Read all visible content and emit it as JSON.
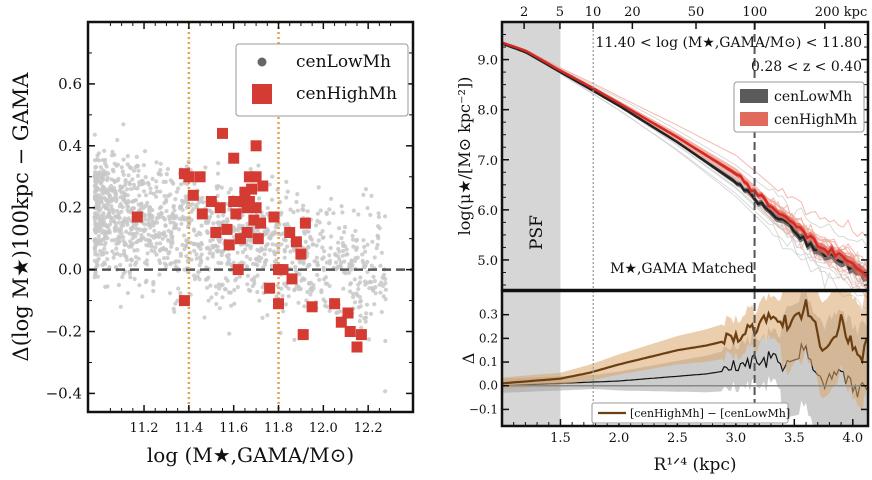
{
  "figure": {
    "left_panel": {
      "chart_data": {
        "type": "scatter",
        "xlabel": "log (M★,GAMA/M⊙)",
        "ylabel": "Δ(log M★)100kpc − GAMA",
        "xlim": [
          10.95,
          12.4
        ],
        "ylim": [
          -0.46,
          0.8
        ],
        "xticks": [
          11.2,
          11.4,
          11.6,
          11.8,
          12.0,
          12.2
        ],
        "xtick_labels": [
          "11.2",
          "11.4",
          "11.6",
          "11.8",
          "12.0",
          "12.2"
        ],
        "yticks": [
          -0.4,
          -0.2,
          0.0,
          0.2,
          0.4,
          0.6
        ],
        "ytick_labels": [
          "−0.4",
          "−0.2",
          "0.0",
          "0.2",
          "0.4",
          "0.6"
        ],
        "hline": 0.0,
        "vlines": [
          11.4,
          11.8
        ],
        "legend": {
          "location": "top-right",
          "entries": [
            "cenLowMh",
            "cenHighMh"
          ]
        },
        "series": [
          {
            "name": "cenLowMh",
            "marker": "circle",
            "color": "#c8c8c8",
            "n_points": 1400
          },
          {
            "name": "cenHighMh",
            "marker": "square",
            "color": "#d43b32",
            "points": [
              [
                11.17,
                0.17
              ],
              [
                11.38,
                0.31
              ],
              [
                11.4,
                0.3
              ],
              [
                11.42,
                0.24
              ],
              [
                11.38,
                -0.1
              ],
              [
                11.45,
                0.3
              ],
              [
                11.46,
                0.18
              ],
              [
                11.5,
                0.22
              ],
              [
                11.52,
                0.12
              ],
              [
                11.54,
                0.2
              ],
              [
                11.55,
                0.44
              ],
              [
                11.57,
                0.13
              ],
              [
                11.6,
                0.36
              ],
              [
                11.58,
                0.08
              ],
              [
                11.6,
                0.22
              ],
              [
                11.61,
                0.18
              ],
              [
                11.62,
                0.0
              ],
              [
                11.63,
                0.1
              ],
              [
                11.64,
                0.22
              ],
              [
                11.65,
                0.25
              ],
              [
                11.66,
                0.12
              ],
              [
                11.66,
                0.2
              ],
              [
                11.67,
                0.3
              ],
              [
                11.68,
                0.26
              ],
              [
                11.69,
                0.16
              ],
              [
                11.7,
                0.3
              ],
              [
                11.71,
                0.1
              ],
              [
                11.72,
                0.15
              ],
              [
                11.73,
                0.27
              ],
              [
                11.7,
                0.4
              ],
              [
                11.67,
                0.22
              ],
              [
                11.76,
                -0.06
              ],
              [
                11.78,
                0.17
              ],
              [
                11.8,
                0.0
              ],
              [
                11.8,
                -0.11
              ],
              [
                11.82,
                0.0
              ],
              [
                11.85,
                0.12
              ],
              [
                11.86,
                -0.03
              ],
              [
                11.88,
                0.09
              ],
              [
                11.9,
                0.05
              ],
              [
                11.91,
                -0.21
              ],
              [
                11.92,
                0.15
              ],
              [
                11.95,
                -0.12
              ],
              [
                12.05,
                -0.11
              ],
              [
                12.08,
                -0.17
              ],
              [
                12.11,
                -0.14
              ],
              [
                12.12,
                -0.2
              ],
              [
                12.15,
                -0.25
              ],
              [
                12.17,
                -0.21
              ],
              [
                11.7,
                0.2
              ]
            ]
          }
        ]
      }
    },
    "top_right_panel": {
      "chart_data": {
        "type": "line",
        "xlabel": "",
        "ylabel": "log(μ★/[M⊙ kpc⁻²])",
        "xlim": [
          1.0,
          4.13
        ],
        "ylim": [
          4.4,
          9.75
        ],
        "yticks": [
          5.0,
          6.0,
          7.0,
          8.0,
          9.0
        ],
        "ytick_labels": [
          "5.0",
          "6.0",
          "7.0",
          "8.0",
          "9.0"
        ],
        "top_axis": {
          "label": "kpc",
          "ticks_kpc": [
            2,
            5,
            10,
            20,
            50,
            100,
            200
          ],
          "tick_labels": [
            "2",
            "5",
            "10",
            "20",
            "50",
            "100",
            "200 kpc"
          ]
        },
        "psf_region": [
          1.0,
          1.5
        ],
        "psf_label": "PSF",
        "vline_dotted": 1.78,
        "vline_dashed": 3.16,
        "annotations": {
          "mass_range": "11.40 < log (M★,GAMA/M⊙) < 11.80",
          "z_range": "0.28 < z < 0.40",
          "matched_label": "M★,GAMA Matched"
        },
        "legend": {
          "location": "top-right",
          "entries": [
            "cenLowMh",
            "cenHighMh"
          ]
        },
        "series": [
          {
            "name": "cenLowMh",
            "color": "#222222",
            "x": [
              1.0,
              1.2,
              1.5,
              1.8,
              2.0,
              2.5,
              3.0,
              3.3,
              3.5,
              3.7,
              4.0,
              4.13
            ],
            "y": [
              9.32,
              9.15,
              8.75,
              8.35,
              8.08,
              7.35,
              6.55,
              5.95,
              5.55,
              5.2,
              4.85,
              4.7
            ]
          },
          {
            "name": "cenHighMh",
            "color": "#d42a25",
            "x": [
              1.0,
              1.2,
              1.5,
              1.8,
              2.0,
              2.5,
              3.0,
              3.3,
              3.5,
              3.7,
              4.0,
              4.13
            ],
            "y": [
              9.34,
              9.18,
              8.78,
              8.4,
              8.13,
              7.45,
              6.72,
              6.05,
              5.75,
              5.3,
              4.95,
              4.65
            ]
          }
        ]
      }
    },
    "bottom_right_panel": {
      "chart_data": {
        "type": "area",
        "xlabel": "R¹ᐟ⁴ (kpc)",
        "ylabel": "Δ",
        "xlim": [
          1.0,
          4.13
        ],
        "ylim": [
          -0.17,
          0.4
        ],
        "xticks": [
          1.5,
          2.0,
          2.5,
          3.0,
          3.5,
          4.0
        ],
        "xtick_labels": [
          "1.5",
          "2.0",
          "2.5",
          "3.0",
          "3.5",
          "4.0"
        ],
        "yticks": [
          -0.1,
          0.0,
          0.1,
          0.2,
          0.3
        ],
        "ytick_labels": [
          "−0.1",
          "0.0",
          "0.1",
          "0.2",
          "0.3"
        ],
        "legend": {
          "location": "bottom-center",
          "entries": [
            "[cenHighMh] − [cenLowMh]"
          ]
        },
        "series": [
          {
            "name": "[cenHighMh] − [cenLowMh]",
            "color": "#6b3f12",
            "x": [
              1.0,
              1.25,
              1.5,
              1.75,
              2.0,
              2.25,
              2.5,
              2.75,
              3.0,
              3.15,
              3.3,
              3.45,
              3.6,
              3.75,
              3.9,
              4.05,
              4.13
            ],
            "y": [
              0.01,
              0.02,
              0.03,
              0.055,
              0.09,
              0.12,
              0.15,
              0.17,
              0.2,
              0.25,
              0.3,
              0.24,
              0.34,
              0.15,
              0.26,
              0.12,
              0.2
            ]
          },
          {
            "name": "scatter",
            "color": "#111111",
            "x": [
              1.0,
              1.25,
              1.5,
              1.75,
              2.0,
              2.25,
              2.5,
              2.75,
              3.0,
              3.15,
              3.3,
              3.45,
              3.6,
              3.75,
              3.9,
              4.05,
              4.13
            ],
            "y": [
              0.0,
              0.005,
              0.01,
              0.015,
              0.02,
              0.03,
              0.04,
              0.05,
              0.07,
              0.1,
              0.12,
              0.09,
              0.15,
              0.02,
              0.07,
              -0.02,
              0.03
            ]
          }
        ]
      }
    }
  }
}
